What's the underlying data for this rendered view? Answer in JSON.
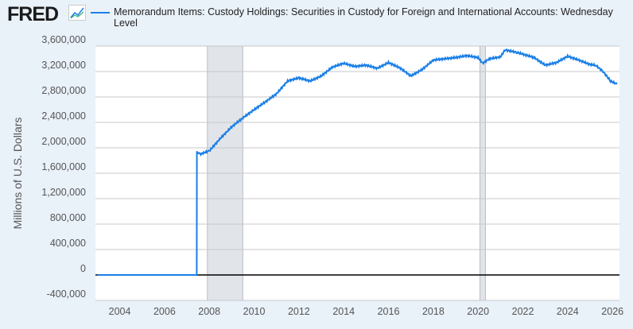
{
  "logo": "FRED",
  "chart_data": {
    "type": "line",
    "title": "",
    "series": [
      {
        "name": "Memorandum Items: Custody Holdings: Securities in Custody for Foreign and International Accounts: Wednesday Level",
        "color": "#1a7fe6",
        "points": [
          [
            "2003-01-01",
            0
          ],
          [
            "2007-06-10",
            0
          ],
          [
            "2007-06-13",
            1930000
          ],
          [
            "2007-08-01",
            1900000
          ],
          [
            "2008-01-01",
            1950000
          ],
          [
            "2008-07-01",
            2150000
          ],
          [
            "2009-01-01",
            2330000
          ],
          [
            "2009-07-01",
            2470000
          ],
          [
            "2010-01-01",
            2600000
          ],
          [
            "2010-07-01",
            2720000
          ],
          [
            "2011-01-01",
            2850000
          ],
          [
            "2011-07-01",
            3050000
          ],
          [
            "2012-01-01",
            3100000
          ],
          [
            "2012-07-01",
            3050000
          ],
          [
            "2013-01-01",
            3130000
          ],
          [
            "2013-07-01",
            3270000
          ],
          [
            "2014-01-01",
            3330000
          ],
          [
            "2014-07-01",
            3280000
          ],
          [
            "2015-01-01",
            3300000
          ],
          [
            "2015-07-01",
            3250000
          ],
          [
            "2016-01-01",
            3340000
          ],
          [
            "2016-07-01",
            3260000
          ],
          [
            "2017-01-01",
            3130000
          ],
          [
            "2017-07-01",
            3230000
          ],
          [
            "2018-01-01",
            3380000
          ],
          [
            "2018-07-01",
            3400000
          ],
          [
            "2019-01-01",
            3420000
          ],
          [
            "2019-07-01",
            3450000
          ],
          [
            "2020-01-01",
            3420000
          ],
          [
            "2020-03-15",
            3330000
          ],
          [
            "2020-07-01",
            3400000
          ],
          [
            "2021-01-01",
            3430000
          ],
          [
            "2021-03-15",
            3540000
          ],
          [
            "2021-10-01",
            3500000
          ],
          [
            "2022-07-01",
            3420000
          ],
          [
            "2023-01-01",
            3300000
          ],
          [
            "2023-07-01",
            3340000
          ],
          [
            "2024-01-01",
            3440000
          ],
          [
            "2024-07-01",
            3380000
          ],
          [
            "2025-01-01",
            3310000
          ],
          [
            "2025-04-01",
            3300000
          ],
          [
            "2025-08-01",
            3200000
          ],
          [
            "2025-12-01",
            3050000
          ],
          [
            "2026-03-15",
            3000000
          ]
        ]
      }
    ],
    "ylabel": "Millions of U.S. Dollars",
    "ylim": [
      -400000,
      3600000
    ],
    "yticks": [
      "3,600,000",
      "3,200,000",
      "2,800,000",
      "2,400,000",
      "2,000,000",
      "1,600,000",
      "1,200,000",
      "800,000",
      "400,000",
      "0",
      "-400,000"
    ],
    "ytick_values": [
      3600000,
      3200000,
      2800000,
      2400000,
      2000000,
      1600000,
      1200000,
      800000,
      400000,
      0,
      -400000
    ],
    "xlim": [
      "2002-12-01",
      "2026-04-25"
    ],
    "xticks": [
      "2004",
      "2006",
      "2008",
      "2010",
      "2012",
      "2014",
      "2016",
      "2018",
      "2020",
      "2022",
      "2024",
      "2026"
    ],
    "recessions": [
      [
        "2007-12-01",
        "2009-06-30"
      ],
      [
        "2020-02-01",
        "2020-04-30"
      ]
    ],
    "grid": true,
    "legend": "top"
  }
}
